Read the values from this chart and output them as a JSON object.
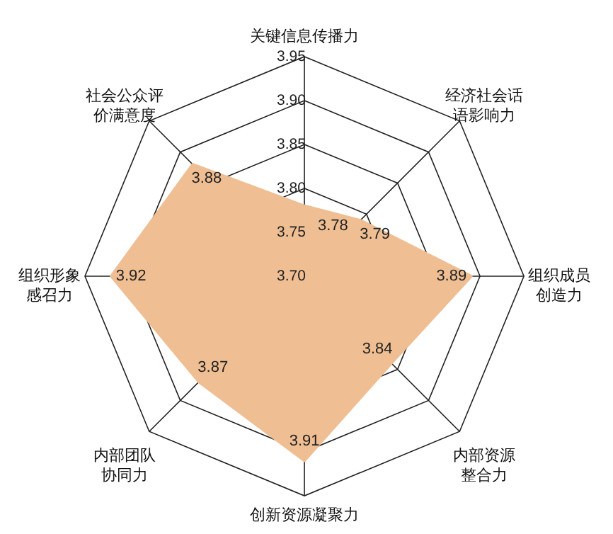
{
  "chart_data": {
    "type": "radar",
    "categories": [
      "关键信息传播力",
      "经济社会话语影响力",
      "组织成员创造力",
      "内部资源整合力",
      "创新资源凝聚力",
      "内部团队协同力",
      "组织形象感召力",
      "社会公众评价满意度"
    ],
    "series": [
      {
        "color": "#efbe92",
        "values": [
          3.78,
          3.79,
          3.89,
          3.84,
          3.91,
          3.87,
          3.92,
          3.88
        ]
      }
    ],
    "ylim": [
      3.7,
      3.95
    ],
    "yticks": [
      {
        "value": 3.7,
        "label": "3.70"
      },
      3.75,
      {
        "value": 3.8,
        "label": "3.80"
      },
      3.85,
      {
        "value": 3.9,
        "label": "3.90"
      },
      3.95
    ],
    "grid": true,
    "data_labels": true
  }
}
